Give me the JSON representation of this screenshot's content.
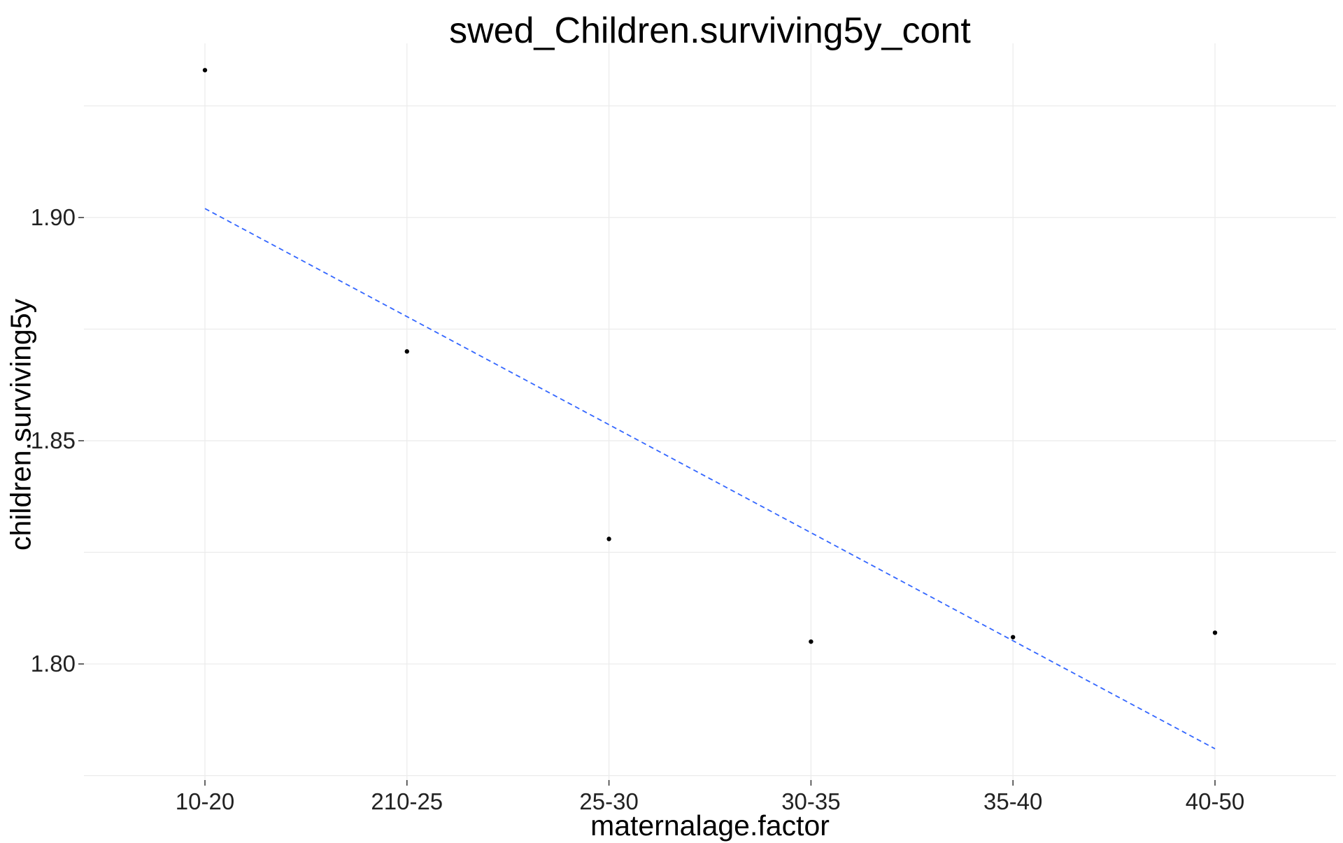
{
  "chart_data": {
    "type": "scatter",
    "title": "swed_Children.surviving5y_cont",
    "xlabel": "maternalage.factor",
    "ylabel": "children.surviving5y",
    "categories": [
      "10-20",
      "210-25",
      "25-30",
      "30-35",
      "35-40",
      "40-50"
    ],
    "values": [
      1.933,
      1.87,
      1.828,
      1.805,
      1.806,
      1.807
    ],
    "trend_line": {
      "start": 1.902,
      "end": 1.781,
      "style": "dashed",
      "color": "#3366ff"
    },
    "ylim": [
      1.774,
      1.939
    ],
    "y_ticks": [
      1.8,
      1.85,
      1.9
    ],
    "y_tick_labels": [
      "1.80",
      "1.85",
      "1.90"
    ],
    "grid": true,
    "point_color": "#000000",
    "grid_color": "#ebebeb"
  }
}
